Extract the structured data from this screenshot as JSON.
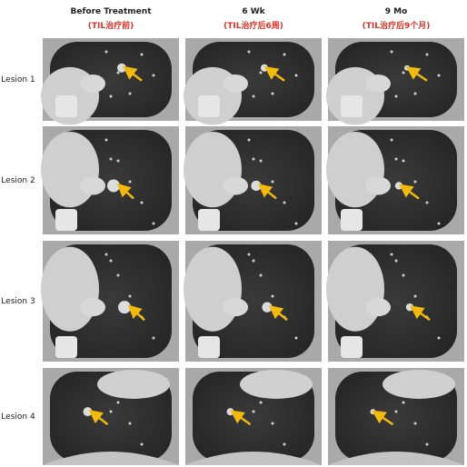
{
  "columns": [
    {
      "title": "Before Treatment",
      "subtitle": "(TIL治疗前)"
    },
    {
      "title": "6 Wk",
      "subtitle": "(TIL治疗后6周)"
    },
    {
      "title": "9 Mo",
      "subtitle": "(TIL治疗后9个月)"
    }
  ],
  "rows": [
    {
      "label": "Lesion 1"
    },
    {
      "label": "Lesion 2"
    },
    {
      "label": "Lesion 3"
    },
    {
      "label": "Lesion 4"
    }
  ]
}
